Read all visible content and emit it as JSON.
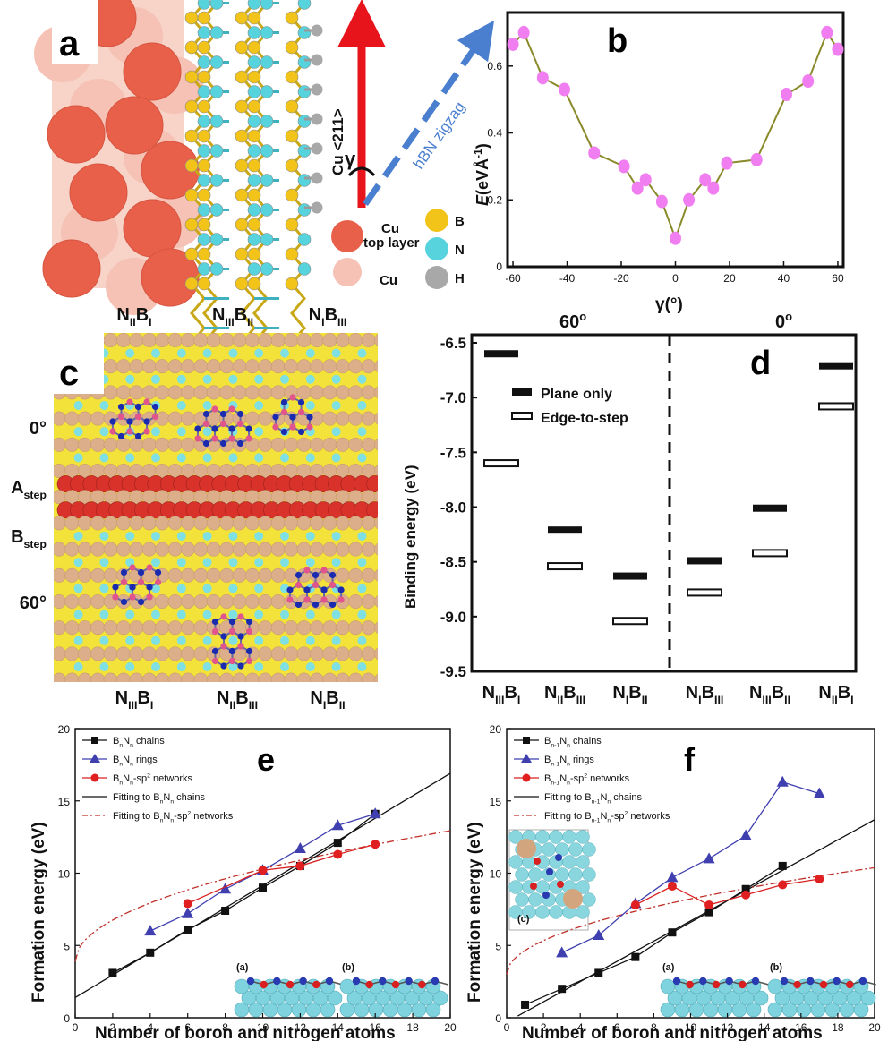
{
  "panels": {
    "a": {
      "label": "a",
      "direction_cu": "Cu <211>",
      "direction_hbn": "hBN zigzag",
      "angle_symbol": "γ",
      "legend": {
        "cu_top": "Cu",
        "cu_top_line2": "top layer",
        "cu": "Cu",
        "b": "B",
        "n": "N",
        "h": "H"
      },
      "colors": {
        "cu_top": "#e8604a",
        "cu": "#f5c2b5",
        "b": "#f2c318",
        "n": "#56d3dc",
        "h": "#a8a8a8"
      }
    },
    "c": {
      "label": "c",
      "top_labels": [
        "N<sub>II</sub>B<sub>I</sub>",
        "N<sub>III</sub>B<sub>II</sub>",
        "N<sub>I</sub>B<sub>III</sub>"
      ],
      "bottom_labels": [
        "N<sub>III</sub>B<sub>I</sub>",
        "N<sub>II</sub>B<sub>III</sub>",
        "N<sub>I</sub>B<sub>II</sub>"
      ],
      "side_labels": [
        "0°",
        "A<sub>step</sub>",
        "B<sub>step</sub>",
        "60°"
      ]
    }
  },
  "chart_data": [
    {
      "id": "b",
      "type": "line",
      "label": "b",
      "xlabel": "γ(°)",
      "ylabel": "E(eVÅ-1)",
      "xlim": [
        -62,
        62
      ],
      "ylim": [
        0,
        0.76
      ],
      "xticks": [
        -60,
        -40,
        -20,
        0,
        20,
        40,
        60
      ],
      "yticks": [
        0,
        0.2,
        0.4,
        0.6
      ],
      "x": [
        -60,
        -56,
        -49,
        -41,
        -30,
        -19,
        -14,
        -11,
        -5,
        0,
        5,
        11,
        14,
        19,
        30,
        41,
        49,
        56,
        60
      ],
      "y": [
        0.665,
        0.7,
        0.565,
        0.53,
        0.34,
        0.3,
        0.235,
        0.26,
        0.195,
        0.085,
        0.2,
        0.26,
        0.235,
        0.31,
        0.32,
        0.515,
        0.555,
        0.7,
        0.65
      ]
    },
    {
      "id": "d",
      "type": "scatter",
      "label": "d",
      "ylabel": "Binding energy (eV)",
      "ylim": [
        -9.5,
        -6.5
      ],
      "yticks": [
        -6.5,
        -7.0,
        -7.5,
        -8.0,
        -8.5,
        -9.0,
        -9.5
      ],
      "groups": [
        "60°",
        "0°"
      ],
      "categories": [
        "N<sub>III</sub>B<sub>I</sub>",
        "N<sub>II</sub>B<sub>III</sub>",
        "N<sub>I</sub>B<sub>II</sub>",
        "N<sub>I</sub>B<sub>III</sub>",
        "N<sub>III</sub>B<sub>II</sub>",
        "N<sub>II</sub>B<sub>I</sub>"
      ],
      "series": [
        {
          "name": "Plane only",
          "values": [
            -6.6,
            -8.21,
            -8.63,
            -8.49,
            -8.01,
            -6.71
          ]
        },
        {
          "name": "Edge-to-step",
          "values": [
            -7.6,
            -8.54,
            -9.04,
            -8.78,
            -8.42,
            -7.08
          ]
        }
      ]
    },
    {
      "id": "e",
      "type": "line",
      "label": "e",
      "xlabel": "Number of boron and nitrogen atoms",
      "ylabel": "Formation energy (eV)",
      "xlim": [
        0,
        20
      ],
      "ylim": [
        0,
        20
      ],
      "xticks": [
        0,
        2,
        4,
        6,
        8,
        10,
        12,
        14,
        16,
        18,
        20
      ],
      "yticks": [
        0,
        5,
        10,
        15,
        20
      ],
      "series": [
        {
          "name": "B<sub>n</sub>N<sub>n</sub> chains",
          "x": [
            2,
            4,
            6,
            8,
            10,
            12,
            14,
            16
          ],
          "y": [
            3.1,
            4.5,
            6.1,
            7.4,
            9.0,
            10.5,
            12.1,
            14.1
          ]
        },
        {
          "name": "B<sub>n</sub>N<sub>n</sub> rings",
          "x": [
            4,
            6,
            8,
            10,
            12,
            14,
            16
          ],
          "y": [
            6.0,
            7.2,
            8.9,
            10.2,
            11.7,
            13.3,
            14.1
          ]
        },
        {
          "name": "B<sub>n</sub>N<sub>n</sub>-sp<sup>2</sup> networks",
          "x": [
            6,
            10,
            12,
            14,
            16
          ],
          "y": [
            7.9,
            10.2,
            10.5,
            11.3,
            12.0
          ]
        }
      ],
      "fits": [
        {
          "name": "Fitting to B<sub>n</sub>N<sub>n</sub> chains",
          "kind": "linear",
          "slope": 0.775,
          "intercept": 1.4
        },
        {
          "name": "Fitting to B<sub>n</sub>N<sub>n</sub>-sp<sup>2</sup> networks",
          "kind": "sqrt",
          "a": 2.02,
          "b": 3.9
        }
      ],
      "insets": [
        "(a)",
        "(b)"
      ]
    },
    {
      "id": "f",
      "type": "line",
      "label": "f",
      "xlabel": "Number of boron and nitrogen atoms",
      "ylabel": "Formation energy (eV)",
      "xlim": [
        0,
        20
      ],
      "ylim": [
        0,
        20
      ],
      "xticks": [
        0,
        2,
        4,
        6,
        8,
        10,
        12,
        14,
        16,
        18,
        20
      ],
      "yticks": [
        0,
        5,
        10,
        15,
        20
      ],
      "series": [
        {
          "name": "B<sub>n-1</sub>N<sub>n</sub> chains",
          "x": [
            1,
            3,
            5,
            7,
            9,
            11,
            13,
            15
          ],
          "y": [
            0.9,
            2.0,
            3.1,
            4.2,
            5.9,
            7.3,
            8.9,
            10.5
          ]
        },
        {
          "name": "B<sub>n-1</sub>N<sub>n</sub> rings",
          "x": [
            3,
            5,
            7,
            9,
            11,
            13,
            15,
            17
          ],
          "y": [
            4.5,
            5.7,
            7.9,
            9.7,
            11.0,
            12.6,
            16.3,
            15.5
          ]
        },
        {
          "name": "B<sub>n-1</sub>N<sub>n</sub>-sp<sup>2</sup> networks",
          "x": [
            7,
            9,
            11,
            13,
            15,
            17
          ],
          "y": [
            7.8,
            9.1,
            7.8,
            8.5,
            9.2,
            9.6
          ]
        }
      ],
      "fits": [
        {
          "name": "Fitting to B<sub>n-1</sub>N<sub>n</sub> chains",
          "kind": "linear",
          "slope": 0.7,
          "intercept": -0.3
        },
        {
          "name": "Fitting to B<sub>n-1</sub>N<sub>n</sub>-sp<sup>2</sup> networks",
          "kind": "sqrt",
          "a": 1.65,
          "b": 3.0
        }
      ],
      "insets": [
        "(a)",
        "(b)",
        "(c)"
      ]
    }
  ]
}
